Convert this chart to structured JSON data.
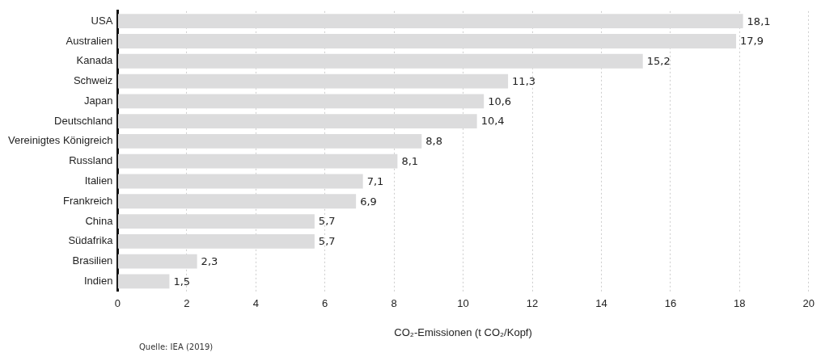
{
  "chart_data": {
    "type": "bar",
    "orientation": "horizontal",
    "xlabel": "CO₂-Emissionen (t CO₂/Kopf)",
    "categories": [
      "USA",
      "Australien",
      "Kanada",
      "Schweiz",
      "Japan",
      "Deutschland",
      "Vereinigtes Königreich",
      "Russland",
      "Italien",
      "Frankreich",
      "China",
      "Südafrika",
      "Brasilien",
      "Indien"
    ],
    "values": [
      18.1,
      17.9,
      15.2,
      11.3,
      10.6,
      10.4,
      8.8,
      8.1,
      7.1,
      6.9,
      5.7,
      5.7,
      2.3,
      1.5
    ],
    "value_labels": [
      "18,1",
      "17,9",
      "15,2",
      "11,3",
      "10,6",
      "10,4",
      "8,8",
      "8,1",
      "7,1",
      "6,9",
      "5,7",
      "5,7",
      "2,3",
      "1,5"
    ],
    "color": "#dcdcdd",
    "xlim": [
      0,
      20
    ],
    "xticks": [
      0,
      2,
      4,
      6,
      8,
      10,
      12,
      14,
      16,
      18,
      20
    ],
    "grid": "x",
    "annotations": [
      "Quelle: IEA (2019)"
    ]
  }
}
